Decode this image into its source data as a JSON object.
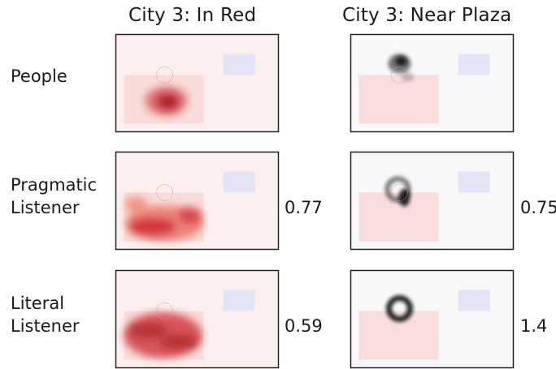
{
  "columns": [
    {
      "title": "City 3:  In Red",
      "theme": "reds"
    },
    {
      "title": "City 3:  Near Plaza",
      "theme": "greys"
    }
  ],
  "rows": [
    {
      "label_lines": [
        "People"
      ],
      "scores": [
        "",
        ""
      ]
    },
    {
      "label_lines": [
        "Pragmatic",
        "Listener"
      ],
      "scores": [
        "0.77",
        "0.75"
      ]
    },
    {
      "label_lines": [
        "Literal",
        "Listener"
      ],
      "scores": [
        "0.59",
        "1.4"
      ]
    }
  ],
  "colors": {
    "red_region": "#f8d8d6",
    "blue_region": "#e3e4f6",
    "red_background": "#fcefed",
    "grey_background": "#f8f8fa",
    "red_heat": "#c81d25",
    "grey_heat": "#111111",
    "panel_border": "#222222",
    "plaza_marker": "#c2a0a0"
  }
}
